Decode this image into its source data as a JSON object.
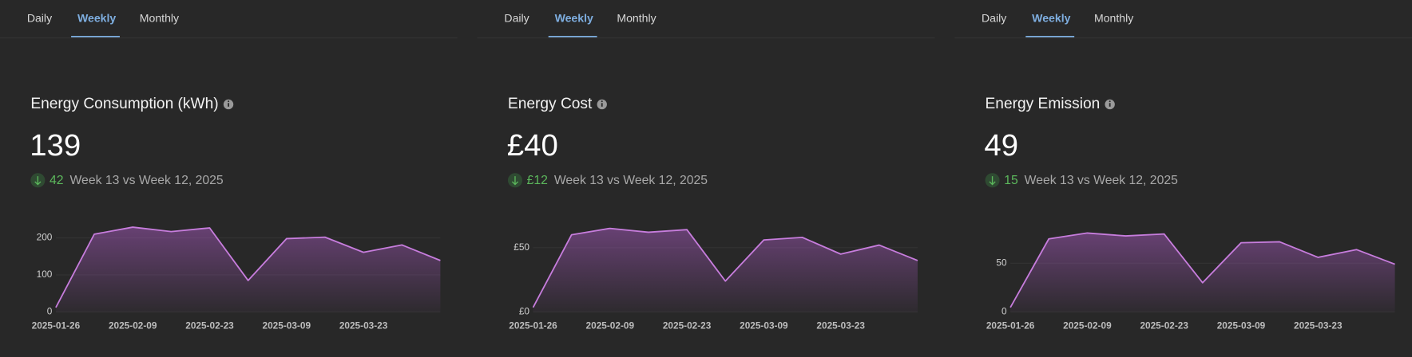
{
  "panels": [
    {
      "tabs": [
        "Daily",
        "Weekly",
        "Monthly"
      ],
      "title": "Energy Consumption (kWh)",
      "value": "139",
      "delta": "42",
      "comparison": "Week 13 vs Week 12, 2025"
    },
    {
      "tabs": [
        "Daily",
        "Weekly",
        "Monthly"
      ],
      "title": "Energy Cost",
      "value": "£40",
      "delta": "£12",
      "comparison": "Week 13 vs Week 12, 2025"
    },
    {
      "tabs": [
        "Daily",
        "Weekly",
        "Monthly"
      ],
      "title": "Energy Emission",
      "value": "49",
      "delta": "15",
      "comparison": "Week 13 vs Week 12, 2025"
    }
  ],
  "chart_data": [
    {
      "type": "area",
      "color": "#c77ddd",
      "x": [
        "2025-01-26",
        "2025-02-02",
        "2025-02-09",
        "2025-02-16",
        "2025-02-23",
        "2025-03-02",
        "2025-03-09",
        "2025-03-16",
        "2025-03-23",
        "2025-03-30",
        "2025-04-06"
      ],
      "values": [
        12,
        210,
        229,
        217,
        227,
        85,
        198,
        202,
        161,
        181,
        139
      ],
      "xlim": [
        "2025-01-26",
        "2025-04-06"
      ],
      "xticks": [
        "2025-01-26",
        "2025-02-09",
        "2025-02-23",
        "2025-03-09",
        "2025-03-23"
      ],
      "ylim": [
        0,
        250
      ],
      "yticks": [
        0,
        100,
        200
      ],
      "grid": true
    },
    {
      "type": "area",
      "color": "#c77ddd",
      "x": [
        "2025-01-26",
        "2025-02-02",
        "2025-02-09",
        "2025-02-16",
        "2025-02-23",
        "2025-03-02",
        "2025-03-09",
        "2025-03-16",
        "2025-03-23",
        "2025-03-30",
        "2025-04-06"
      ],
      "values": [
        3.5,
        60,
        65,
        62,
        64,
        24,
        56,
        58,
        45,
        52,
        40
      ],
      "xlim": [
        "2025-01-26",
        "2025-04-06"
      ],
      "xticks": [
        "2025-01-26",
        "2025-02-09",
        "2025-02-23",
        "2025-03-09",
        "2025-03-23"
      ],
      "ylim": [
        0,
        72
      ],
      "yticks": [
        {
          "value": 0,
          "label": "£0"
        },
        {
          "value": 50,
          "label": "£50"
        }
      ],
      "grid": true
    },
    {
      "type": "area",
      "color": "#c77ddd",
      "x": [
        "2025-01-26",
        "2025-02-02",
        "2025-02-09",
        "2025-02-16",
        "2025-02-23",
        "2025-03-02",
        "2025-03-09",
        "2025-03-16",
        "2025-03-23",
        "2025-03-30",
        "2025-04-06"
      ],
      "values": [
        4.6,
        75,
        81,
        78,
        80,
        30,
        71,
        72,
        56,
        64,
        49
      ],
      "xlim": [
        "2025-01-26",
        "2025-04-06"
      ],
      "xticks": [
        "2025-01-26",
        "2025-02-09",
        "2025-02-23",
        "2025-03-09",
        "2025-03-23"
      ],
      "ylim": [
        0,
        95
      ],
      "yticks": [
        0,
        50
      ],
      "grid": true
    }
  ]
}
